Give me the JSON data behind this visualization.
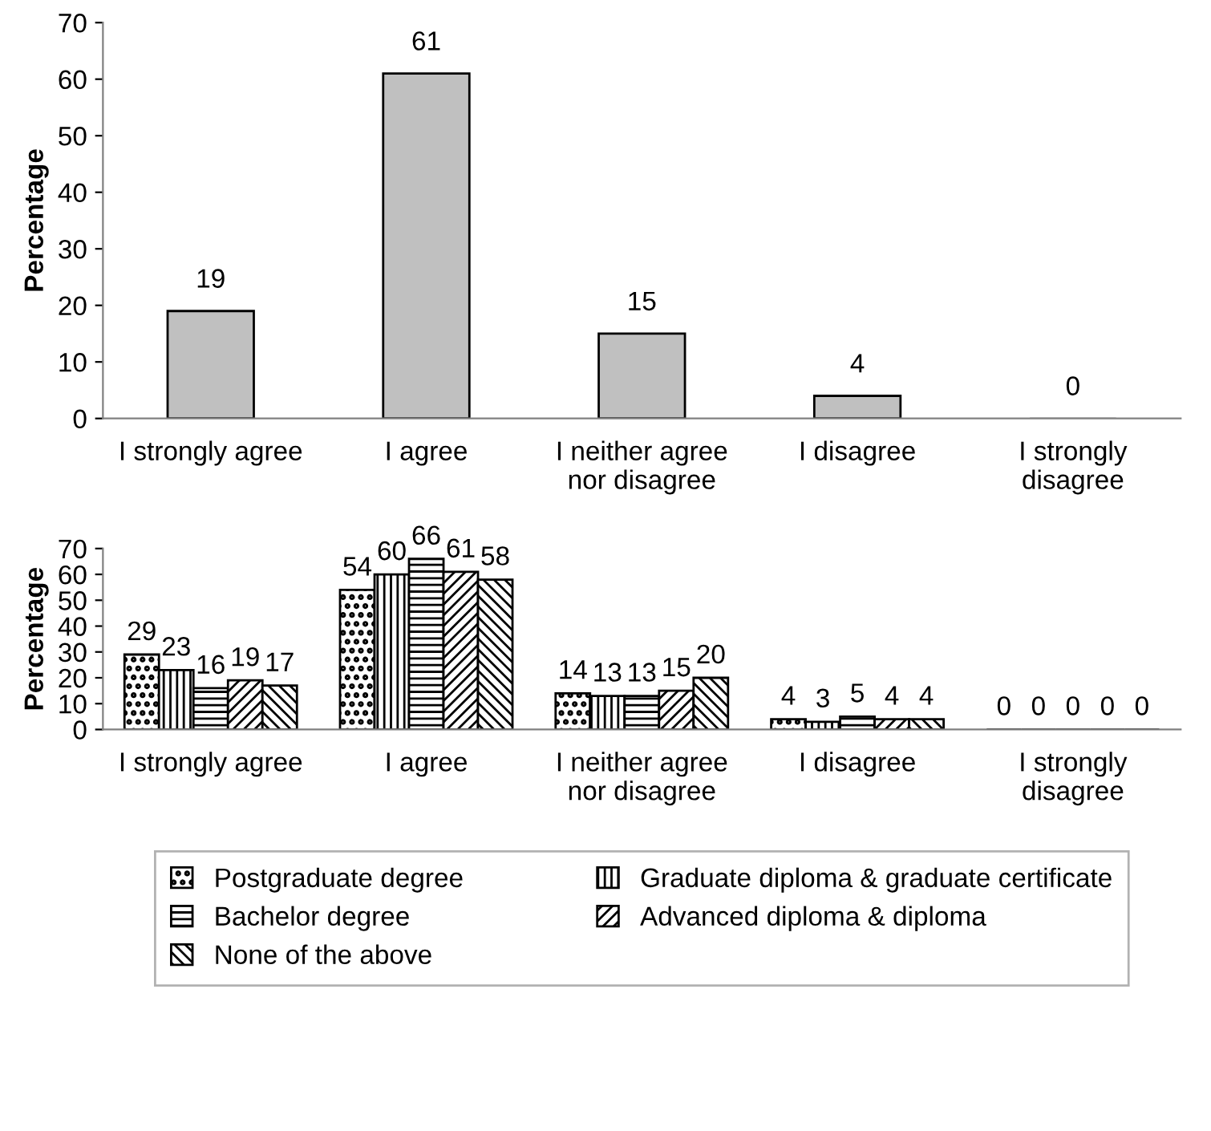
{
  "chart_data": [
    {
      "type": "bar",
      "ylabel": "Percentage",
      "categories": [
        "I strongly agree",
        "I agree",
        "I neither agree\nnor disagree",
        "I disagree",
        "I strongly\ndisagree"
      ],
      "values": [
        19,
        61,
        15,
        4,
        0
      ],
      "color": "#c0c0c0",
      "ylim": [
        0,
        70
      ],
      "yticks": [
        0,
        10,
        20,
        30,
        40,
        50,
        60,
        70
      ],
      "data_labels": true,
      "grid": false,
      "legend": false
    },
    {
      "type": "bar",
      "ylabel": "Percentage",
      "categories": [
        "I strongly agree",
        "I agree",
        "I neither agree\nnor disagree",
        "I disagree",
        "I strongly\ndisagree"
      ],
      "series": [
        {
          "name": "Postgraduate degree",
          "color": "#000000",
          "values": [
            29,
            54,
            14,
            4,
            0
          ]
        },
        {
          "name": "Graduate diploma & graduate certificate",
          "color": "#000000",
          "values": [
            23,
            60,
            13,
            3,
            0
          ]
        },
        {
          "name": "Bachelor degree",
          "color": "#000000",
          "values": [
            16,
            66,
            13,
            5,
            0
          ]
        },
        {
          "name": "Advanced diploma & diploma",
          "color": "#000000",
          "values": [
            19,
            61,
            15,
            4,
            0
          ]
        },
        {
          "name": "None of the above",
          "color": "#000000",
          "values": [
            17,
            58,
            20,
            4,
            0
          ]
        }
      ],
      "ylim": [
        0,
        70
      ],
      "yticks": [
        0,
        10,
        20,
        30,
        40,
        50,
        60,
        70
      ],
      "data_labels": true,
      "grid": false,
      "legend": "bottom"
    }
  ]
}
